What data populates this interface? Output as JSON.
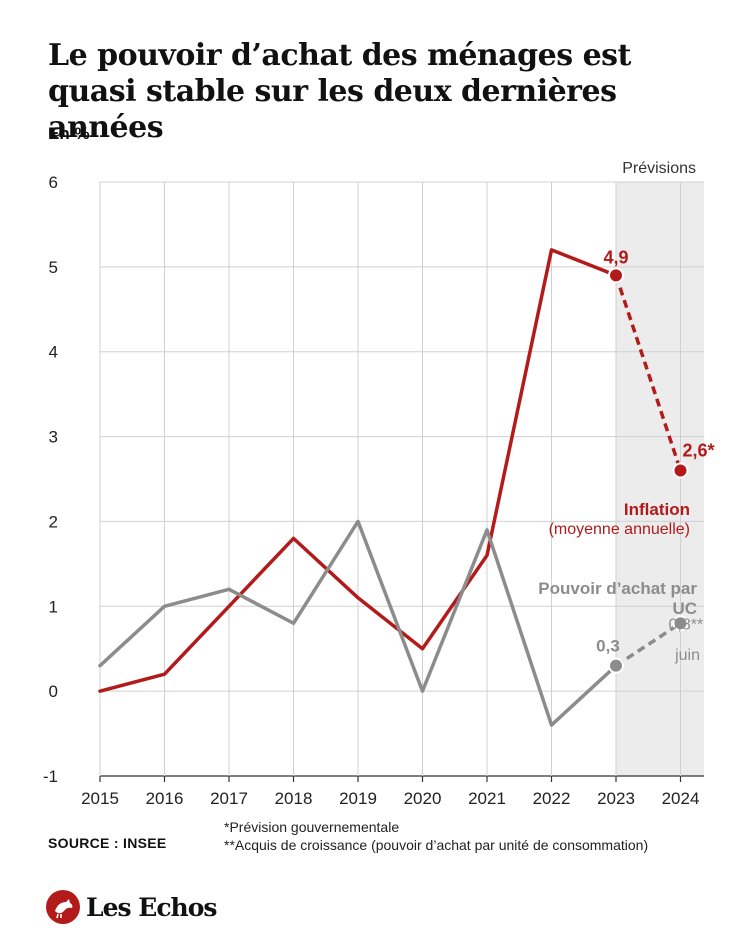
{
  "title": "Le pouvoir d’achat des ménages est quasi stable sur les deux dernières années",
  "unit_label": "En %",
  "forecast_label": "Prévisions",
  "source": "SOURCE : INSEE",
  "notes": [
    "*Prévision gouvernementale",
    "**Acquis de croissance (pouvoir d’achat par unité de consommation)"
  ],
  "brand": "Les Echos",
  "colors": {
    "inflation": "#b31b1b",
    "purchasing_power": "#8c8c8c",
    "forecast_band": "#ececec",
    "grid": "#d0d0d0"
  },
  "chart_data": {
    "type": "line",
    "categories": [
      "2015",
      "2016",
      "2017",
      "2018",
      "2019",
      "2020",
      "2021",
      "2022",
      "2023",
      "2024"
    ],
    "ylim": [
      -1,
      6
    ],
    "yticks": [
      "-1",
      "0",
      "1",
      "2",
      "3",
      "4",
      "5",
      "6"
    ],
    "grid": true,
    "forecast_start": "2023",
    "series": [
      {
        "name": "Inflation",
        "subtitle": "(moyenne annuelle)",
        "color": "#b31b1b",
        "values": [
          0.0,
          0.2,
          1.0,
          1.8,
          1.1,
          0.5,
          1.6,
          5.2,
          4.9,
          2.6
        ],
        "dashed_from_index": 8,
        "labels": [
          {
            "index": 8,
            "text": "4,9"
          },
          {
            "index": 9,
            "text": "2,6*"
          }
        ]
      },
      {
        "name": "Pouvoir d’achat par UC",
        "subtitle": "juin",
        "color": "#8c8c8c",
        "values": [
          0.3,
          1.0,
          1.2,
          0.8,
          2.0,
          0.0,
          1.9,
          -0.4,
          0.3,
          0.8
        ],
        "dashed_from_index": 8,
        "labels": [
          {
            "index": 8,
            "text": "0,3"
          },
          {
            "index": 9,
            "text": "0,8**"
          }
        ]
      }
    ]
  }
}
